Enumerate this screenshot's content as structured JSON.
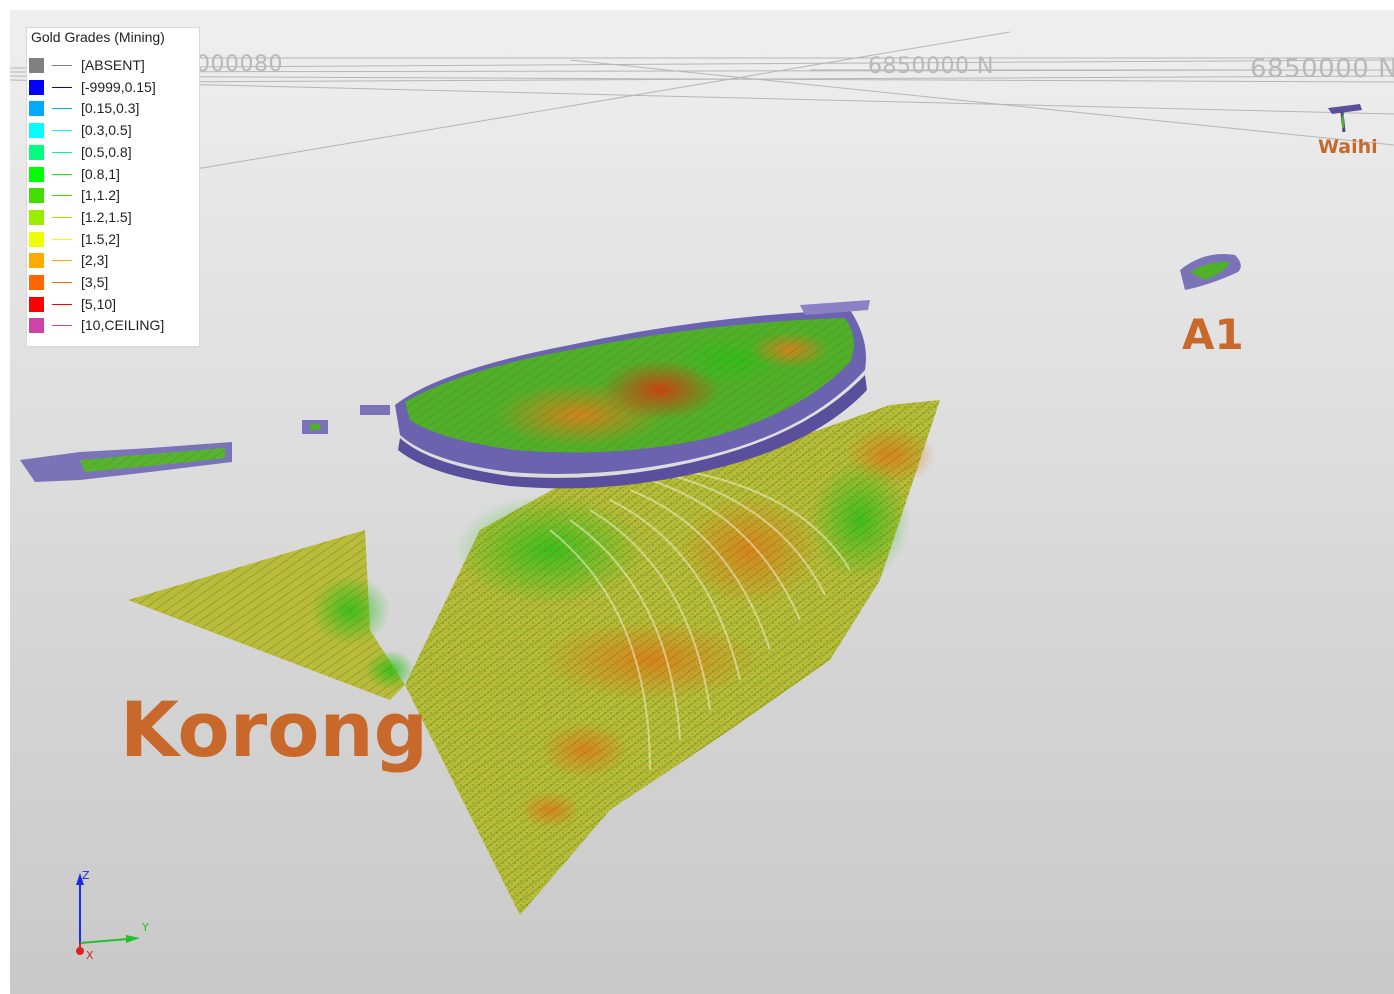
{
  "legend": {
    "title": "Gold Grades (Mining)",
    "items": [
      {
        "label": "[ABSENT]",
        "color": "#808080"
      },
      {
        "label": "[-9999,0.15]",
        "color": "#0000ff"
      },
      {
        "label": "[0.15,0.3]",
        "color": "#00aaff"
      },
      {
        "label": "[0.3,0.5]",
        "color": "#00ffff"
      },
      {
        "label": "[0.5,0.8]",
        "color": "#00ff80"
      },
      {
        "label": "[0.8,1]",
        "color": "#00ff00"
      },
      {
        "label": "[1,1.2]",
        "color": "#44dd00"
      },
      {
        "label": "[1.2,1.5]",
        "color": "#99ee00"
      },
      {
        "label": "[1.5,2]",
        "color": "#eeff00"
      },
      {
        "label": "[2,3]",
        "color": "#ffaa00"
      },
      {
        "label": "[3,5]",
        "color": "#ff6600"
      },
      {
        "label": "[5,10]",
        "color": "#ff0000"
      },
      {
        "label": "[10,CEILING]",
        "color": "#cc44aa"
      }
    ]
  },
  "grid_labels": {
    "left": "000080",
    "middle": "6850000 N",
    "right": "6850000 N"
  },
  "deposits": {
    "korong": "Korong",
    "a1": "A1",
    "waihi": "Waihi"
  },
  "axes": {
    "z": "Z",
    "y": "Y",
    "x": "X"
  },
  "colors": {
    "label_orange": "#c8692b",
    "absent_purple": "#7a73b8",
    "background": "#d8d8d8"
  }
}
